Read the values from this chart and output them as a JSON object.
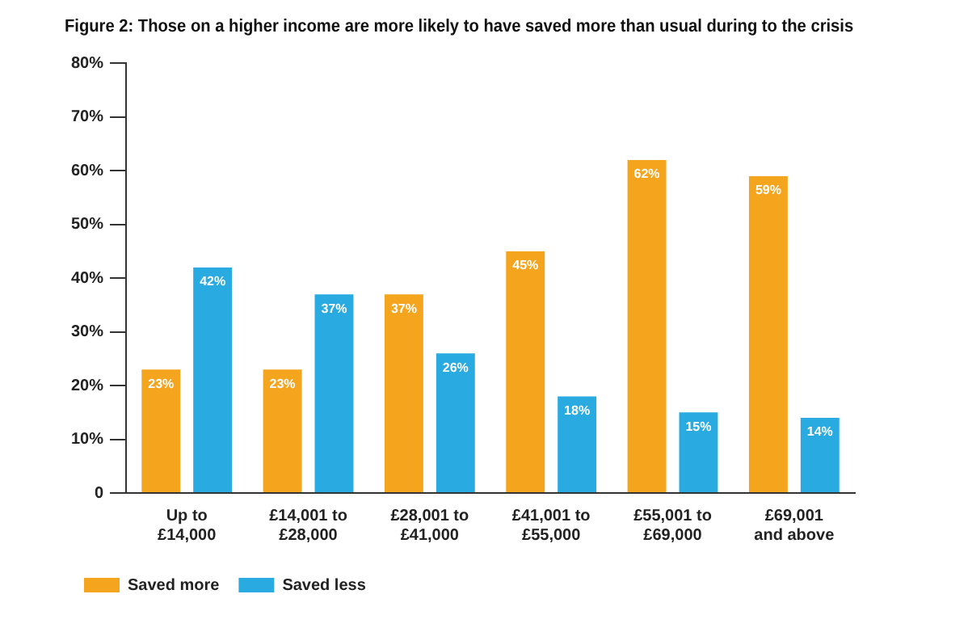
{
  "chart_data": {
    "type": "bar",
    "title": "Figure 2: Those on a higher income are more likely to have saved more than usual during to the crisis",
    "categories": [
      "Up to\n£14,000",
      "£14,001 to\n£28,000",
      "£28,001 to\n£41,000",
      "£41,001 to\n£55,000",
      "£55,001 to\n£69,000",
      "£69,001\nand above"
    ],
    "series": [
      {
        "name": "Saved more",
        "color": "#f5a41d",
        "values": [
          23,
          23,
          37,
          45,
          62,
          59
        ],
        "value_labels": [
          "23%",
          "23%",
          "37%",
          "45%",
          "62%",
          "59%"
        ]
      },
      {
        "name": "Saved less",
        "color": "#29abe2",
        "values": [
          42,
          37,
          26,
          18,
          15,
          14
        ],
        "value_labels": [
          "42%",
          "37%",
          "26%",
          "18%",
          "15%",
          "14%"
        ]
      }
    ],
    "ylim": [
      0,
      80
    ],
    "yticks": [
      0,
      {
        "value": 10,
        "label": "10%"
      },
      {
        "value": 20,
        "label": "20%"
      },
      {
        "value": 30,
        "label": "30%"
      },
      {
        "value": 40,
        "label": "40%"
      },
      {
        "value": 50,
        "label": "50%"
      },
      {
        "value": 60,
        "label": "60%"
      },
      {
        "value": 70,
        "label": "70%"
      },
      {
        "value": 80,
        "label": "80%"
      }
    ],
    "grid": false,
    "legend": "bottom left"
  }
}
